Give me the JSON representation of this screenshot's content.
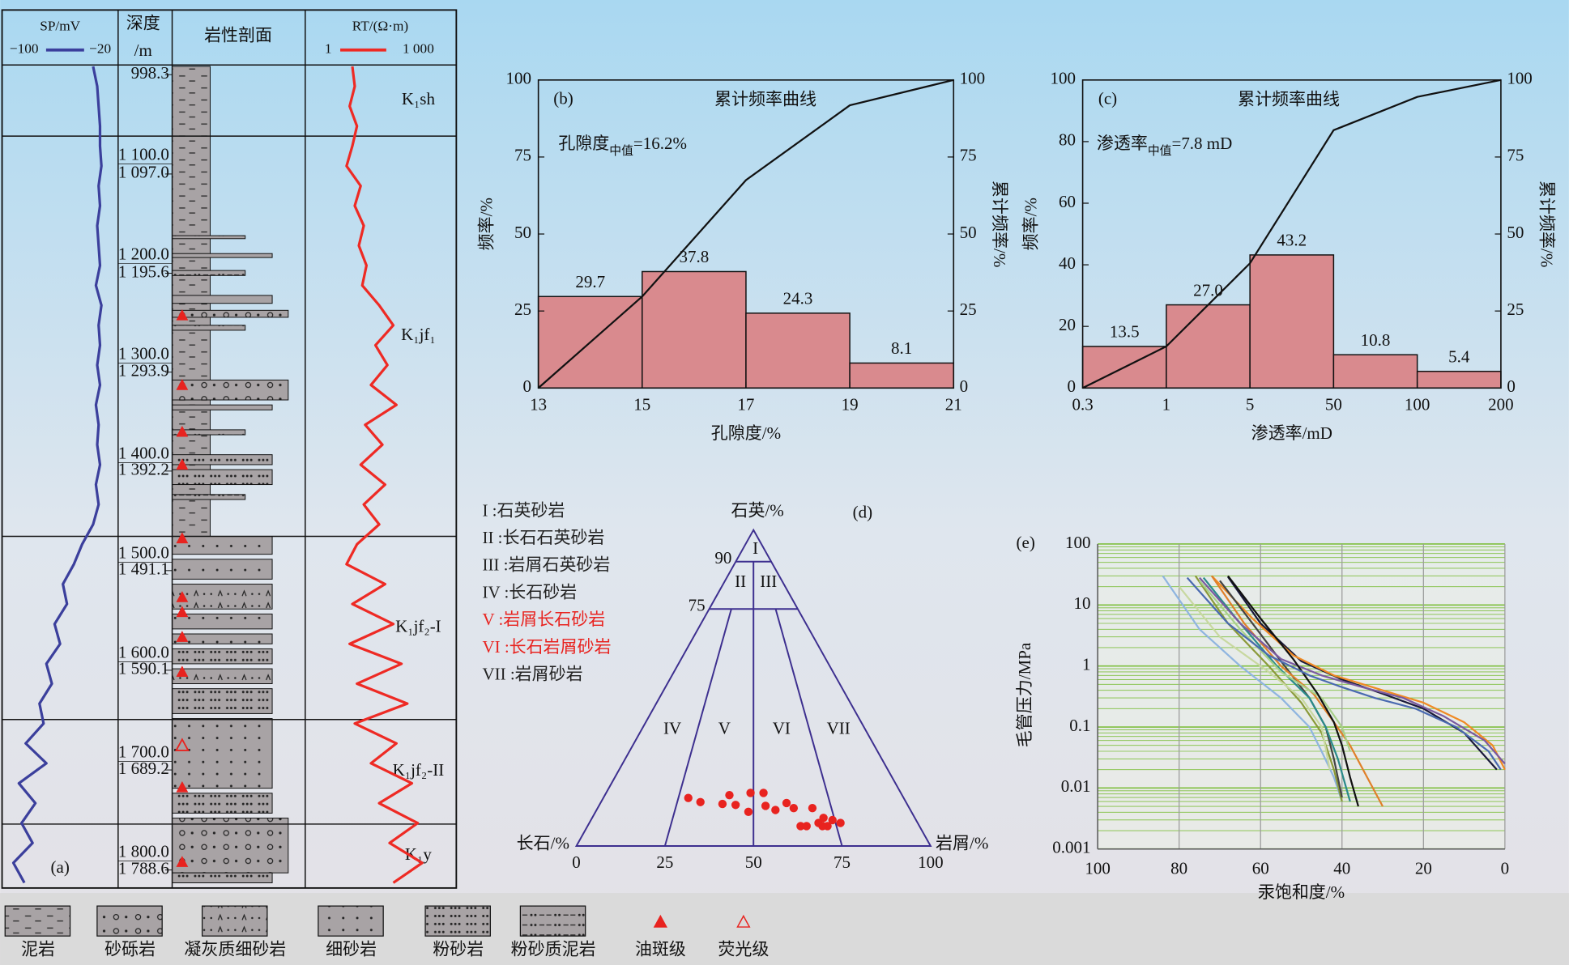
{
  "chart_data": [
    {
      "type": "well-log",
      "panel_label": "(a)",
      "depth_title": "深度",
      "depth_unit": "/m",
      "lithology_title": "岩性剖面",
      "ylim": [
        1008.6,
        1835.2
      ],
      "yticks": [
        {
          "value": 1100,
          "label": "1 100.0"
        },
        {
          "value": 1200,
          "label": "1 200.0"
        },
        {
          "value": 1300,
          "label": "1 300.0"
        },
        {
          "value": 1400,
          "label": "1 400.0"
        },
        {
          "value": 1500,
          "label": "1 500.0"
        },
        {
          "value": 1600,
          "label": "1 600.0"
        },
        {
          "value": 1700,
          "label": "1 700.0"
        },
        {
          "value": 1800,
          "label": "1 800.0"
        }
      ],
      "y2lim": [
        988.7,
        1806.5
      ],
      "y2ticks": [
        998.3,
        {
          "value": 1097,
          "label": "1 097.0"
        },
        {
          "value": 1195.6,
          "label": "1 195.6"
        },
        {
          "value": 1293.9,
          "label": "1 293.9"
        },
        {
          "value": 1392.2,
          "label": "1 392.2"
        },
        {
          "value": 1491.1,
          "label": "1 491.1"
        },
        {
          "value": 1590.1,
          "label": "1 590.1"
        },
        {
          "value": 1689.2,
          "label": "1 689.2"
        },
        {
          "value": 1788.6,
          "label": "1 788.6"
        }
      ],
      "depth": [
        1010,
        1030,
        1050,
        1070,
        1090,
        1110,
        1130,
        1150,
        1170,
        1190,
        1210,
        1230,
        1250,
        1270,
        1290,
        1310,
        1330,
        1350,
        1370,
        1390,
        1410,
        1430,
        1450,
        1470,
        1490,
        1510,
        1530,
        1550,
        1570,
        1590,
        1610,
        1630,
        1650,
        1670,
        1690,
        1710,
        1730,
        1750,
        1770,
        1790,
        1810,
        1830
      ],
      "sp": {
        "title": "SP/mV",
        "color": "#3b3f9c",
        "xlim": [
          -100,
          -20
        ],
        "xticks": [
          {
            "value": -100,
            "label": "−100"
          },
          {
            "value": -20,
            "label": "−20"
          }
        ],
        "values": [
          -36,
          -33,
          -32,
          -31,
          -31,
          -30,
          -32,
          -31,
          -33,
          -32,
          -31,
          -34,
          -30,
          -32,
          -31,
          -33,
          -31,
          -34,
          -32,
          -33,
          -31,
          -34,
          -32,
          -36,
          -44,
          -50,
          -58,
          -55,
          -64,
          -60,
          -70,
          -66,
          -75,
          -72,
          -85,
          -70,
          -90,
          -78,
          -88,
          -80,
          -94,
          -86
        ]
      },
      "rt": {
        "title": "RT/(Ω·m)",
        "color": "#ee2a24",
        "log": true,
        "xlim": [
          1,
          1000
        ],
        "xticks": [
          1,
          {
            "value": 1000,
            "label": "1 000"
          }
        ],
        "values": [
          8,
          9,
          7,
          10,
          8,
          6,
          12,
          9,
          14,
          11,
          16,
          13,
          30,
          60,
          25,
          45,
          20,
          70,
          15,
          35,
          12,
          40,
          14,
          30,
          10,
          6,
          40,
          8,
          60,
          7,
          90,
          10,
          120,
          9,
          70,
          20,
          150,
          30,
          200,
          50,
          250,
          60
        ]
      },
      "boundaries": [
        1080,
        1482,
        1666,
        1771
      ],
      "formations": [
        "K₁sh",
        "K₁jf₁",
        "K₁jf₂-I",
        "K₁jf₂-II",
        "K₁y"
      ],
      "beds": [
        {
          "top": 1010,
          "bottom": 1482,
          "lithology": 0
        },
        {
          "top": 1180,
          "bottom": 1183,
          "lithology": 5
        },
        {
          "top": 1198,
          "bottom": 1202,
          "lithology": 4
        },
        {
          "top": 1215,
          "bottom": 1220,
          "lithology": 5
        },
        {
          "top": 1240,
          "bottom": 1248,
          "lithology": 3
        },
        {
          "top": 1255,
          "bottom": 1262,
          "lithology": 1
        },
        {
          "top": 1270,
          "bottom": 1275,
          "lithology": 5
        },
        {
          "top": 1325,
          "bottom": 1345,
          "lithology": 1
        },
        {
          "top": 1350,
          "bottom": 1355,
          "lithology": 4
        },
        {
          "top": 1375,
          "bottom": 1380,
          "lithology": 5
        },
        {
          "top": 1400,
          "bottom": 1410,
          "lithology": 4
        },
        {
          "top": 1415,
          "bottom": 1430,
          "lithology": 4
        },
        {
          "top": 1440,
          "bottom": 1445,
          "lithology": 5
        },
        {
          "top": 1482,
          "bottom": 1500,
          "lithology": 3
        },
        {
          "top": 1505,
          "bottom": 1525,
          "lithology": 3
        },
        {
          "top": 1530,
          "bottom": 1555,
          "lithology": 2
        },
        {
          "top": 1560,
          "bottom": 1575,
          "lithology": 3
        },
        {
          "top": 1580,
          "bottom": 1590,
          "lithology": 3
        },
        {
          "top": 1595,
          "bottom": 1610,
          "lithology": 4
        },
        {
          "top": 1615,
          "bottom": 1630,
          "lithology": 2
        },
        {
          "top": 1635,
          "bottom": 1660,
          "lithology": 4
        },
        {
          "top": 1665,
          "bottom": 1735,
          "lithology": 3
        },
        {
          "top": 1740,
          "bottom": 1760,
          "lithology": 4
        },
        {
          "top": 1765,
          "bottom": 1820,
          "lithology": 1
        },
        {
          "top": 1820,
          "bottom": 1830,
          "lithology": 4
        }
      ],
      "oil_spot": [
        1260,
        1330,
        1377,
        1410,
        1484,
        1543,
        1558,
        1583,
        1618,
        1734,
        1809
      ],
      "fluorescence": [
        1692
      ],
      "legend": [
        "泥岩",
        "砂砾岩",
        "凝灰质细砂岩",
        "细砂岩",
        "粉砂岩",
        "粉砂质泥岩",
        "油斑级",
        "荧光级"
      ]
    },
    {
      "type": "histogram",
      "panel_label": "(b)",
      "title": "累计频率曲线",
      "annotation": [
        "孔隙度",
        "中值",
        "=16.2%"
      ],
      "xlabel": "孔隙度/%",
      "ylabel": "频率/%",
      "y2label": "累计频率/%",
      "color": "#d98a8e",
      "bins": [
        13,
        15,
        17,
        19,
        21
      ],
      "values": [
        29.7,
        37.8,
        24.3,
        8.1
      ],
      "xlim": [
        13,
        21
      ],
      "xticks": [
        13,
        15,
        17,
        19,
        21
      ],
      "ylim": [
        0,
        100
      ],
      "yticks": [
        0,
        25,
        50,
        75,
        100
      ],
      "y2lim": [
        0,
        100
      ],
      "y2ticks": [
        0,
        25,
        50,
        75,
        100
      ],
      "cumulative": {
        "x": [
          13,
          15,
          17,
          19,
          21
        ],
        "values": [
          0,
          29.7,
          67.5,
          91.8,
          100
        ]
      }
    },
    {
      "type": "histogram",
      "panel_label": "(c)",
      "title": "累计频率曲线",
      "annotation": [
        "渗透率",
        "中值",
        "=7.8 mD"
      ],
      "xlabel": "渗透率/mD",
      "ylabel": "频率/%",
      "y2label": "累计频率/%",
      "color": "#d98a8e",
      "xscale": "equal-spaced",
      "bins": [
        0.3,
        1,
        5,
        50,
        100,
        200
      ],
      "values": [
        13.5,
        27,
        43.2,
        10.8,
        5.4
      ],
      "value_labels": [
        "13.5",
        "27.0",
        "43.2",
        "10.8",
        "5.4"
      ],
      "xticks": [
        0.3,
        1,
        5,
        50,
        100,
        200
      ],
      "ylim": [
        0,
        100
      ],
      "yticks": [
        0,
        20,
        40,
        60,
        80,
        100
      ],
      "y2lim": [
        0,
        100
      ],
      "y2ticks": [
        0,
        25,
        50,
        75,
        100
      ],
      "cumulative": {
        "x": [
          0.3,
          1,
          5,
          50,
          100,
          200
        ],
        "values": [
          0,
          13.5,
          40.5,
          83.7,
          94.5,
          100
        ]
      }
    },
    {
      "type": "ternary",
      "panel_label": "(d)",
      "top_label": "石英/%",
      "left_label": "长石/%",
      "right_label": "岩屑/%",
      "xticks": [
        0,
        25,
        50,
        75,
        100
      ],
      "quartz_ticks": [
        90,
        75
      ],
      "line_color": "#3d2f8f",
      "color": "#e8231f",
      "region_labels": [
        "I",
        "II",
        "III",
        "IV",
        "V",
        "VI",
        "VII"
      ],
      "classes": [
        {
          "label": "I :石英砂岩",
          "color": "#222222"
        },
        {
          "label": "II :长石石英砂岩",
          "color": "#222222"
        },
        {
          "label": "III :岩屑石英砂岩",
          "color": "#222222"
        },
        {
          "label": "IV :长石砂岩",
          "color": "#222222"
        },
        {
          "label": "V :岩屑长石砂岩",
          "color": "#e8231f"
        },
        {
          "label": "VI :长石岩屑砂岩",
          "color": "#e8231f"
        },
        {
          "label": "VII :岩屑砂岩",
          "color": "#222222"
        }
      ],
      "x": [
        28.3,
        32.6,
        39.9,
        41.9,
        48.4,
        49,
        53.4,
        53.9,
        57,
        60.8,
        62.9,
        64.2,
        68.9,
        66,
        69.8,
        71.7,
        72.3,
        74.3,
        76.5,
        70.8,
        44.2
      ],
      "y": [
        15.2,
        13.9,
        13.3,
        16.1,
        10.8,
        16.8,
        16.8,
        12.7,
        11.4,
        13.6,
        12,
        6.3,
        12,
        6.3,
        7.3,
        8.9,
        6.3,
        8.2,
        7.3,
        6.3,
        13
      ]
    },
    {
      "type": "line",
      "panel_label": "(e)",
      "xlabel": "汞饱和度/%",
      "ylabel": "毛管压力/MPa",
      "log_y": true,
      "grid": true,
      "minor_grid": true,
      "grid_color": "#7fbf3f",
      "xlim": [
        100,
        0
      ],
      "xticks": [
        100,
        80,
        60,
        40,
        20,
        0
      ],
      "ylim": [
        0.001,
        100
      ],
      "yticks": [
        100,
        10,
        1,
        0.1,
        0.01,
        0.001
      ],
      "series": [
        {
          "color": "#1a1a3a",
          "x": [
            68,
            60,
            50,
            40,
            30,
            20,
            10,
            2
          ],
          "values": [
            29,
            5,
            1.2,
            0.6,
            0.35,
            0.2,
            0.08,
            0.02
          ]
        },
        {
          "color": "#f08a24",
          "x": [
            72,
            62,
            52,
            42,
            30,
            20,
            10,
            3,
            0
          ],
          "values": [
            30,
            6,
            1.5,
            0.7,
            0.4,
            0.25,
            0.12,
            0.05,
            0.02
          ]
        },
        {
          "color": "#8fb5e0",
          "x": [
            84,
            75,
            65,
            55,
            48,
            45,
            42,
            40
          ],
          "values": [
            30,
            4,
            1,
            0.3,
            0.1,
            0.04,
            0.015,
            0.006
          ]
        },
        {
          "color": "#8b9a3a",
          "x": [
            76,
            68,
            58,
            50,
            45,
            42,
            40
          ],
          "values": [
            30,
            5,
            1,
            0.25,
            0.08,
            0.02,
            0.006
          ]
        },
        {
          "color": "#444444",
          "x": [
            70,
            62,
            55,
            48,
            44,
            42,
            40
          ],
          "values": [
            25,
            5,
            1.2,
            0.3,
            0.1,
            0.03,
            0.007
          ]
        },
        {
          "color": "#2a8a8a",
          "x": [
            74,
            66,
            56,
            48,
            44,
            41,
            38
          ],
          "values": [
            28,
            6,
            1,
            0.3,
            0.1,
            0.03,
            0.006
          ]
        },
        {
          "color": "#e0802a",
          "x": [
            72,
            64,
            55,
            47,
            42,
            38,
            30
          ],
          "values": [
            30,
            5,
            1,
            0.35,
            0.12,
            0.05,
            0.005
          ]
        },
        {
          "color": "#7a5aa0",
          "x": [
            75,
            65,
            55,
            45,
            35,
            25,
            15,
            5,
            0
          ],
          "values": [
            28,
            5,
            1.3,
            0.7,
            0.45,
            0.3,
            0.15,
            0.06,
            0.025
          ]
        },
        {
          "color": "#a8d08a",
          "x": [
            75,
            65,
            55,
            45,
            40,
            38
          ],
          "values": [
            25,
            4,
            0.8,
            0.3,
            0.1,
            0.04
          ]
        },
        {
          "color": "#111111",
          "x": [
            68,
            60,
            52,
            46,
            42,
            40,
            38,
            36
          ],
          "values": [
            30,
            6,
            1.3,
            0.35,
            0.12,
            0.05,
            0.015,
            0.005
          ]
        },
        {
          "color": "#4a6ab0",
          "x": [
            78,
            68,
            58,
            48,
            40,
            32,
            22,
            12,
            4,
            1
          ],
          "values": [
            28,
            5,
            1.5,
            0.7,
            0.45,
            0.3,
            0.2,
            0.1,
            0.04,
            0.02
          ]
        },
        {
          "color": "#c8d8a0",
          "x": [
            80,
            70,
            58,
            50,
            45,
            43
          ],
          "values": [
            20,
            3,
            0.8,
            0.3,
            0.1,
            0.02
          ]
        }
      ]
    }
  ]
}
